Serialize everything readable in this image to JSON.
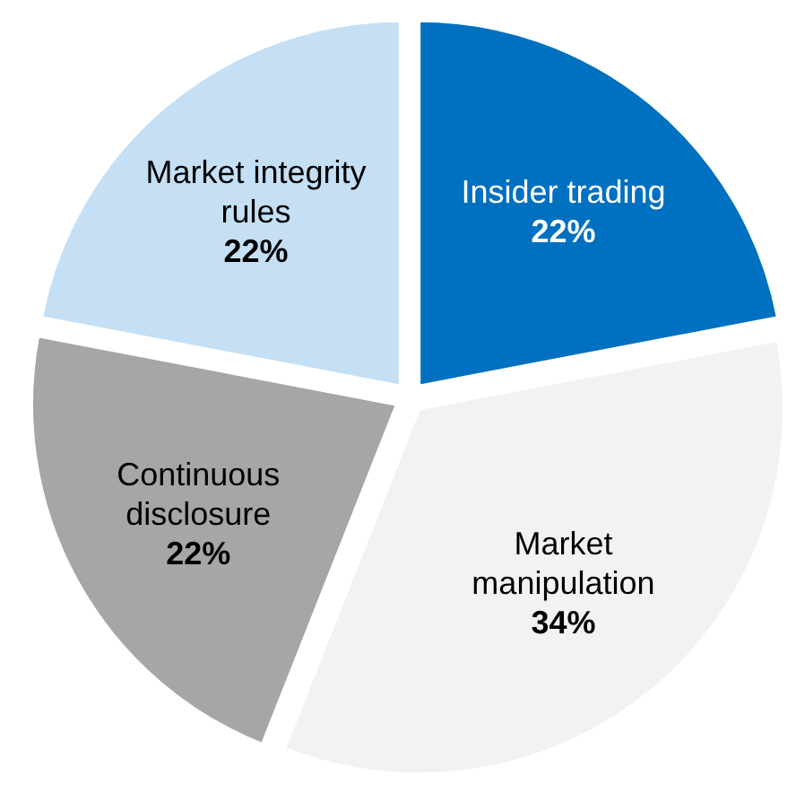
{
  "chart_data": {
    "type": "pie",
    "categories": [
      "Insider trading",
      "Market manipulation",
      "Continuous disclosure",
      "Market integrity rules"
    ],
    "values": [
      22,
      34,
      22,
      22
    ],
    "colors": [
      "#0070c0",
      "#f2f2f2",
      "#a6a6a6",
      "#c5e0f4"
    ],
    "value_labels": [
      "22%",
      "34%",
      "22%",
      "22%"
    ]
  }
}
